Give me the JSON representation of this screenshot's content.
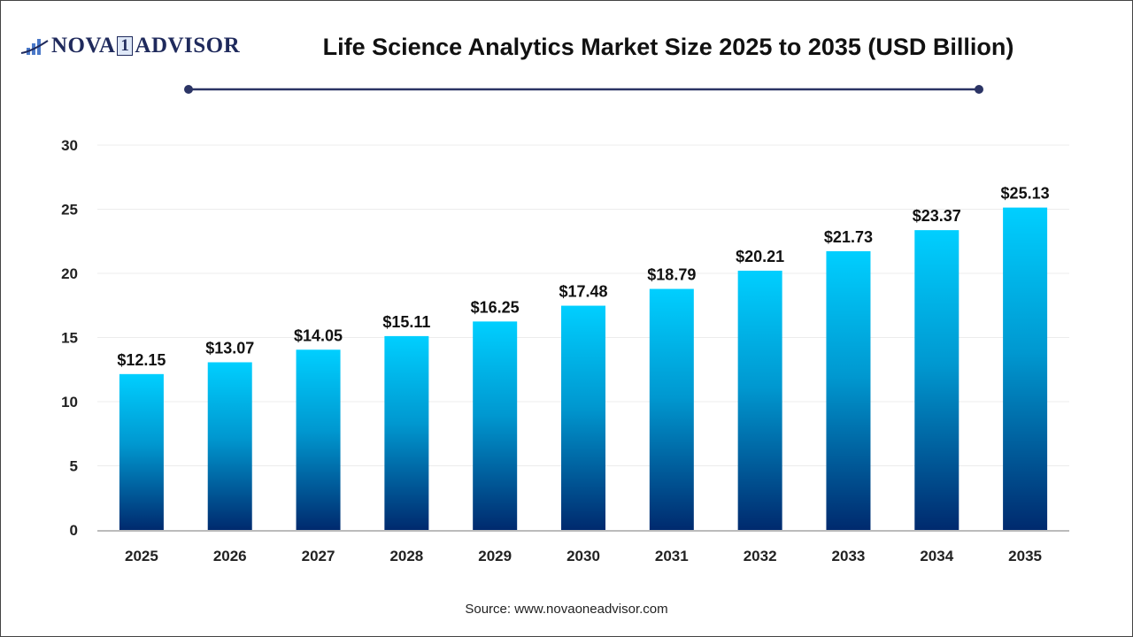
{
  "logo": {
    "text_left": "NOVA",
    "text_mid": "1",
    "text_right": "ADVISOR"
  },
  "source": "Source: www.novaoneadvisor.com",
  "colors": {
    "bar_top": "#00cfff",
    "bar_bottom": "#002a6e",
    "title_line": "#2b3465"
  },
  "chart_data": {
    "type": "bar",
    "title": "Life Science Analytics Market Size 2025 to 2035 (USD Billion)",
    "categories": [
      "2025",
      "2026",
      "2027",
      "2028",
      "2029",
      "2030",
      "2031",
      "2032",
      "2033",
      "2034",
      "2035"
    ],
    "values": [
      12.15,
      13.07,
      14.05,
      15.11,
      16.25,
      17.48,
      18.79,
      20.21,
      21.73,
      23.37,
      25.13
    ],
    "data_labels": [
      "$12.15",
      "$13.07",
      "$14.05",
      "$15.11",
      "$16.25",
      "$17.48",
      "$18.79",
      "$20.21",
      "$21.73",
      "$23.37",
      "$25.13"
    ],
    "ylim": [
      0,
      30
    ],
    "yticks": [
      0,
      5,
      10,
      15,
      20,
      25,
      30
    ],
    "grid": true,
    "xlabel": "",
    "ylabel": ""
  }
}
